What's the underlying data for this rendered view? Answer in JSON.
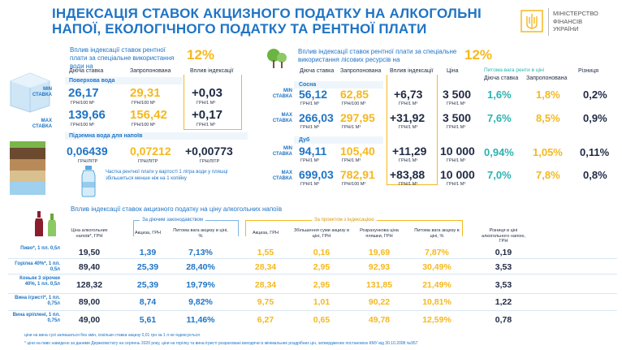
{
  "header": {
    "title": "ІНДЕКСАЦІЯ СТАВОК АКЦИЗНОГО ПОДАТКУ НА АЛКОГОЛЬНІ НАПОЇ, ЕКОЛОГІЧНОГО ПОДАТКУ ТА РЕНТНОЇ ПЛАТИ",
    "ministry_line1": "МІНІСТЕРСТВО",
    "ministry_line2": "ФІНАНСІВ",
    "ministry_line3": "УКРАЇНИ"
  },
  "water": {
    "title": "Вплив індексації ставок рентної плати за спеціальне використання води на",
    "pct": "12%",
    "col_current": "Діюча ставка",
    "col_proposed": "Запропонована",
    "col_impact": "Вплив індексації",
    "min_label": "MIN СТАВКА",
    "max_label": "MAX СТАВКА",
    "surface_label": "Поверхова вода",
    "surface_min": {
      "current": "26,17",
      "current_unit": "ГРН/100 М³",
      "proposed": "29,31",
      "proposed_unit": "ГРН/100 М³",
      "impact": "+0,03",
      "impact_unit": "ГРН/1 М³"
    },
    "surface_max": {
      "current": "139,66",
      "current_unit": "ГРН/100 М³",
      "proposed": "156,42",
      "proposed_unit": "ГРН/100 М³",
      "impact": "+0,17",
      "impact_unit": "ГРН/1 М³"
    },
    "under_label": "Підземна вода для напоїв",
    "under": {
      "current": "0,06439",
      "current_unit": "ГРН/ЛІТР",
      "proposed": "0,07212",
      "proposed_unit": "ГРН/ЛІТР",
      "impact": "+0,00773",
      "impact_unit": "ГРН/ЛІТР"
    },
    "note": "Частка рентної плати у вартості 1 літра води у пляшці збільшиться менше ніж на 1 копійку"
  },
  "forest": {
    "title": "Вплив індексації ставок рентної плати за спеціальне використання лісових ресурсів на",
    "pct": "12%",
    "col_current": "Діюча ставка",
    "col_proposed": "Запропонована",
    "col_impact": "Вплив індексації",
    "col_price": "Ціна",
    "col_share": "Питома вага ренти в ціні",
    "col_share_current": "Діюча ставка",
    "col_share_proposed": "Запропонована",
    "col_diff": "Різниця",
    "min_label": "MIN СТАВКА",
    "max_label": "MAX СТАВКА",
    "pine_label": "Сосна",
    "oak_label": "Дуб",
    "pine_min": {
      "current": "56,12",
      "proposed": "62,85",
      "impact": "+6,73",
      "price": "3 500",
      "share_cur": "1,6%",
      "share_prop": "1,8%",
      "diff": "0,2%"
    },
    "pine_max": {
      "current": "266,03",
      "proposed": "297,95",
      "impact": "+31,92",
      "price": "3 500",
      "share_cur": "7,6%",
      "share_prop": "8,5%",
      "diff": "0,9%"
    },
    "oak_min": {
      "current": "94,11",
      "proposed": "105,40",
      "impact": "+11,29",
      "price": "10 000",
      "share_cur": "0,94%",
      "share_prop": "1,05%",
      "diff": "0,11%"
    },
    "oak_max": {
      "current": "699,03",
      "proposed": "782,91",
      "impact": "+83,88",
      "price": "10 000",
      "share_cur": "7,0%",
      "share_prop": "7,8%",
      "diff": "0,8%"
    },
    "unit_rate": "ГРН/1 М³",
    "unit_rate100": "ГРН/100 М³"
  },
  "alcohol": {
    "title": "Вплив індексації ставок акцизного податку на ціну алкогольних напоїв",
    "group_current": "За діючим законодавством",
    "group_project": "За проектом з індексацією",
    "headers": [
      "Ціна алкогольних напоїв*, ГРН",
      "Акциза, ГРН",
      "Питома вага акцизу в ціні, %",
      "Акциза, ГРН",
      "Збільшення суми акцизу в ціні, ГРН",
      "Розрахункова ціна пляшки, ГРН",
      "Питома вага акцизу в ціні, %",
      "Різниця в ціні алкогольного напою, ГРН"
    ],
    "rows": [
      {
        "label": "Пиво*, 1 пл. 0,5л",
        "cells": [
          "19,50",
          "1,39",
          "7,13%",
          "1,55",
          "0,16",
          "19,69",
          "7,87%",
          "0,19"
        ]
      },
      {
        "label": "Горілка 40%*, 1 пл. 0,5л",
        "cells": [
          "89,40",
          "25,39",
          "28,40%",
          "28,34",
          "2,95",
          "92,93",
          "30,49%",
          "3,53"
        ]
      },
      {
        "label": "Коньяк 3 зірочки 40%, 1 пл. 0,5л",
        "cells": [
          "128,32",
          "25,39",
          "19,79%",
          "28,34",
          "2,95",
          "131,85",
          "21,49%",
          "3,53"
        ]
      },
      {
        "label": "Вина ігристі*, 1 пл. 0,75л",
        "cells": [
          "89,00",
          "8,74",
          "9,82%",
          "9,75",
          "1,01",
          "90,22",
          "10,81%",
          "1,22"
        ]
      },
      {
        "label": "Вина кріплені, 1 пл. 0,75л",
        "cells": [
          "49,00",
          "5,61",
          "11,46%",
          "6,27",
          "0,65",
          "49,78",
          "12,59%",
          "0,78"
        ]
      }
    ],
    "foot1": "ціни на вина сухі залишаться без змін, оскільки ставка акцизу 0,01 грн за 1 л не індексується",
    "foot2": "* ціни на пиво наведено за даними Держкомстату на серпень 2020 року, ціни на горілку та вина ігристі розраховані виходячи із мінімальних роздрібних цін, затверджених постановою КМУ від 30.10.2008 №957"
  }
}
